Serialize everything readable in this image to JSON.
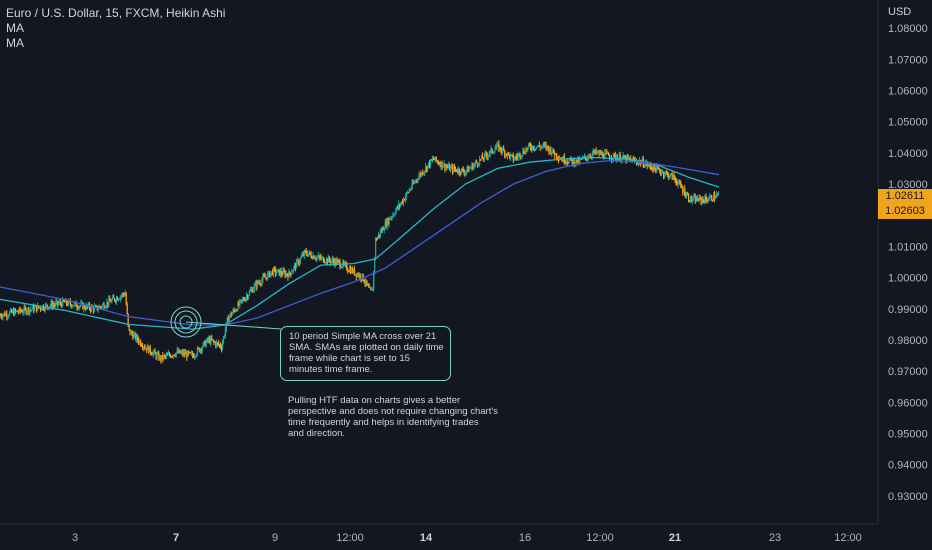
{
  "legend": {
    "symbol": "Euro / U.S. Dollar, 15, FXCM, Heikin Ashi",
    "ma1": "MA",
    "ma2": "MA"
  },
  "axis": {
    "currency": "USD"
  },
  "price_tags": {
    "upper": "1.02611",
    "lower": "1.02603",
    "color": "#f2a51c"
  },
  "annotations": {
    "callout": "10 period Simple MA cross over 21\nSMA.  SMAs are plotted on daily time\nframe while chart is set to 15\nminutes time frame.",
    "note": "Pulling HTF data on charts gives a better\nperspective and does not require changing chart's\ntime frequently and helps in identifying trades\nand direction."
  },
  "colors": {
    "background": "#131722",
    "candle_up": "#26a69a",
    "candle_down": "#f2a51c",
    "ma_fast": "#26b8c9",
    "ma_slow": "#3b5fd9",
    "annotation": "#7fd3c4"
  },
  "chart_data": {
    "type": "line",
    "title": "Euro / U.S. Dollar, 15, FXCM, Heikin Ashi",
    "ylim": [
      0.921,
      1.089
    ],
    "y_ticks": [
      "0.93000",
      "0.94000",
      "0.95000",
      "0.96000",
      "0.97000",
      "0.98000",
      "0.99000",
      "1.00000",
      "1.01000",
      "1.02000",
      "1.03000",
      "1.04000",
      "1.05000",
      "1.06000",
      "1.07000",
      "1.08000"
    ],
    "x_ticks": [
      {
        "label": "3",
        "bold": false
      },
      {
        "label": "7",
        "bold": true
      },
      {
        "label": "9",
        "bold": false
      },
      {
        "label": "12:00",
        "bold": false
      },
      {
        "label": "14",
        "bold": true
      },
      {
        "label": "16",
        "bold": false
      },
      {
        "label": "12:00",
        "bold": false
      },
      {
        "label": "21",
        "bold": true
      },
      {
        "label": "23",
        "bold": false
      },
      {
        "label": "12:00",
        "bold": false
      }
    ],
    "price_path": [
      [
        0,
        0.988
      ],
      [
        2,
        0.992
      ],
      [
        3,
        0.99
      ],
      [
        3.9,
        0.995
      ],
      [
        4.0,
        0.983
      ],
      [
        4.5,
        0.978
      ],
      [
        5,
        0.974
      ],
      [
        5.5,
        0.976
      ],
      [
        6,
        0.975
      ],
      [
        6.5,
        0.98
      ],
      [
        6.9,
        0.978
      ],
      [
        7.1,
        0.987
      ],
      [
        7.5,
        0.992
      ],
      [
        8,
        0.998
      ],
      [
        8.5,
        1.002
      ],
      [
        9,
        1.001
      ],
      [
        9.5,
        1.008
      ],
      [
        10,
        1.006
      ],
      [
        10.5,
        1.005
      ],
      [
        11,
        1.002
      ],
      [
        11.3,
        1.0
      ],
      [
        11.5,
        0.996
      ],
      [
        11.6,
        0.995
      ],
      [
        11.7,
        1.012
      ],
      [
        12,
        1.017
      ],
      [
        12.5,
        1.024
      ],
      [
        13,
        1.032
      ],
      [
        13.5,
        1.038
      ],
      [
        14,
        1.035
      ],
      [
        14.5,
        1.034
      ],
      [
        15,
        1.038
      ],
      [
        15.5,
        1.042
      ],
      [
        16,
        1.038
      ],
      [
        16.5,
        1.042
      ],
      [
        17,
        1.042
      ],
      [
        17.5,
        1.038
      ],
      [
        18,
        1.037
      ],
      [
        18.5,
        1.04
      ],
      [
        19,
        1.039
      ],
      [
        20,
        1.037
      ],
      [
        21,
        1.032
      ],
      [
        21.5,
        1.025
      ],
      [
        22,
        1.025
      ],
      [
        22.4,
        1.0265
      ]
    ],
    "series": [
      {
        "name": "MA",
        "color": "#26b8c9",
        "points": [
          [
            0,
            0.993
          ],
          [
            2,
            0.9895
          ],
          [
            4,
            0.985
          ],
          [
            6,
            0.9835
          ],
          [
            7,
            0.9848
          ],
          [
            8,
            0.991
          ],
          [
            9,
            0.998
          ],
          [
            10,
            1.004
          ],
          [
            11,
            1.0045
          ],
          [
            11.7,
            1.006
          ],
          [
            12.5,
            1.013
          ],
          [
            13.5,
            1.022
          ],
          [
            14.5,
            1.03
          ],
          [
            15.5,
            1.035
          ],
          [
            16.5,
            1.037
          ],
          [
            17.5,
            1.038
          ],
          [
            18.5,
            1.0385
          ],
          [
            19.5,
            1.038
          ],
          [
            20.5,
            1.036
          ],
          [
            21.5,
            1.032
          ],
          [
            22.4,
            1.029
          ]
        ]
      },
      {
        "name": "MA",
        "color": "#3b5fd9",
        "points": [
          [
            0,
            0.997
          ],
          [
            2,
            0.993
          ],
          [
            4,
            0.9875
          ],
          [
            6,
            0.9848
          ],
          [
            7,
            0.9848
          ],
          [
            8,
            0.987
          ],
          [
            9,
            0.991
          ],
          [
            10,
            0.995
          ],
          [
            11,
            0.9985
          ],
          [
            12,
            1.003
          ],
          [
            13,
            1.01
          ],
          [
            14,
            1.017
          ],
          [
            15,
            1.024
          ],
          [
            16,
            1.03
          ],
          [
            17,
            1.034
          ],
          [
            18,
            1.0365
          ],
          [
            19,
            1.0375
          ],
          [
            20,
            1.037
          ],
          [
            21,
            1.0355
          ],
          [
            22.4,
            1.033
          ]
        ]
      }
    ]
  }
}
